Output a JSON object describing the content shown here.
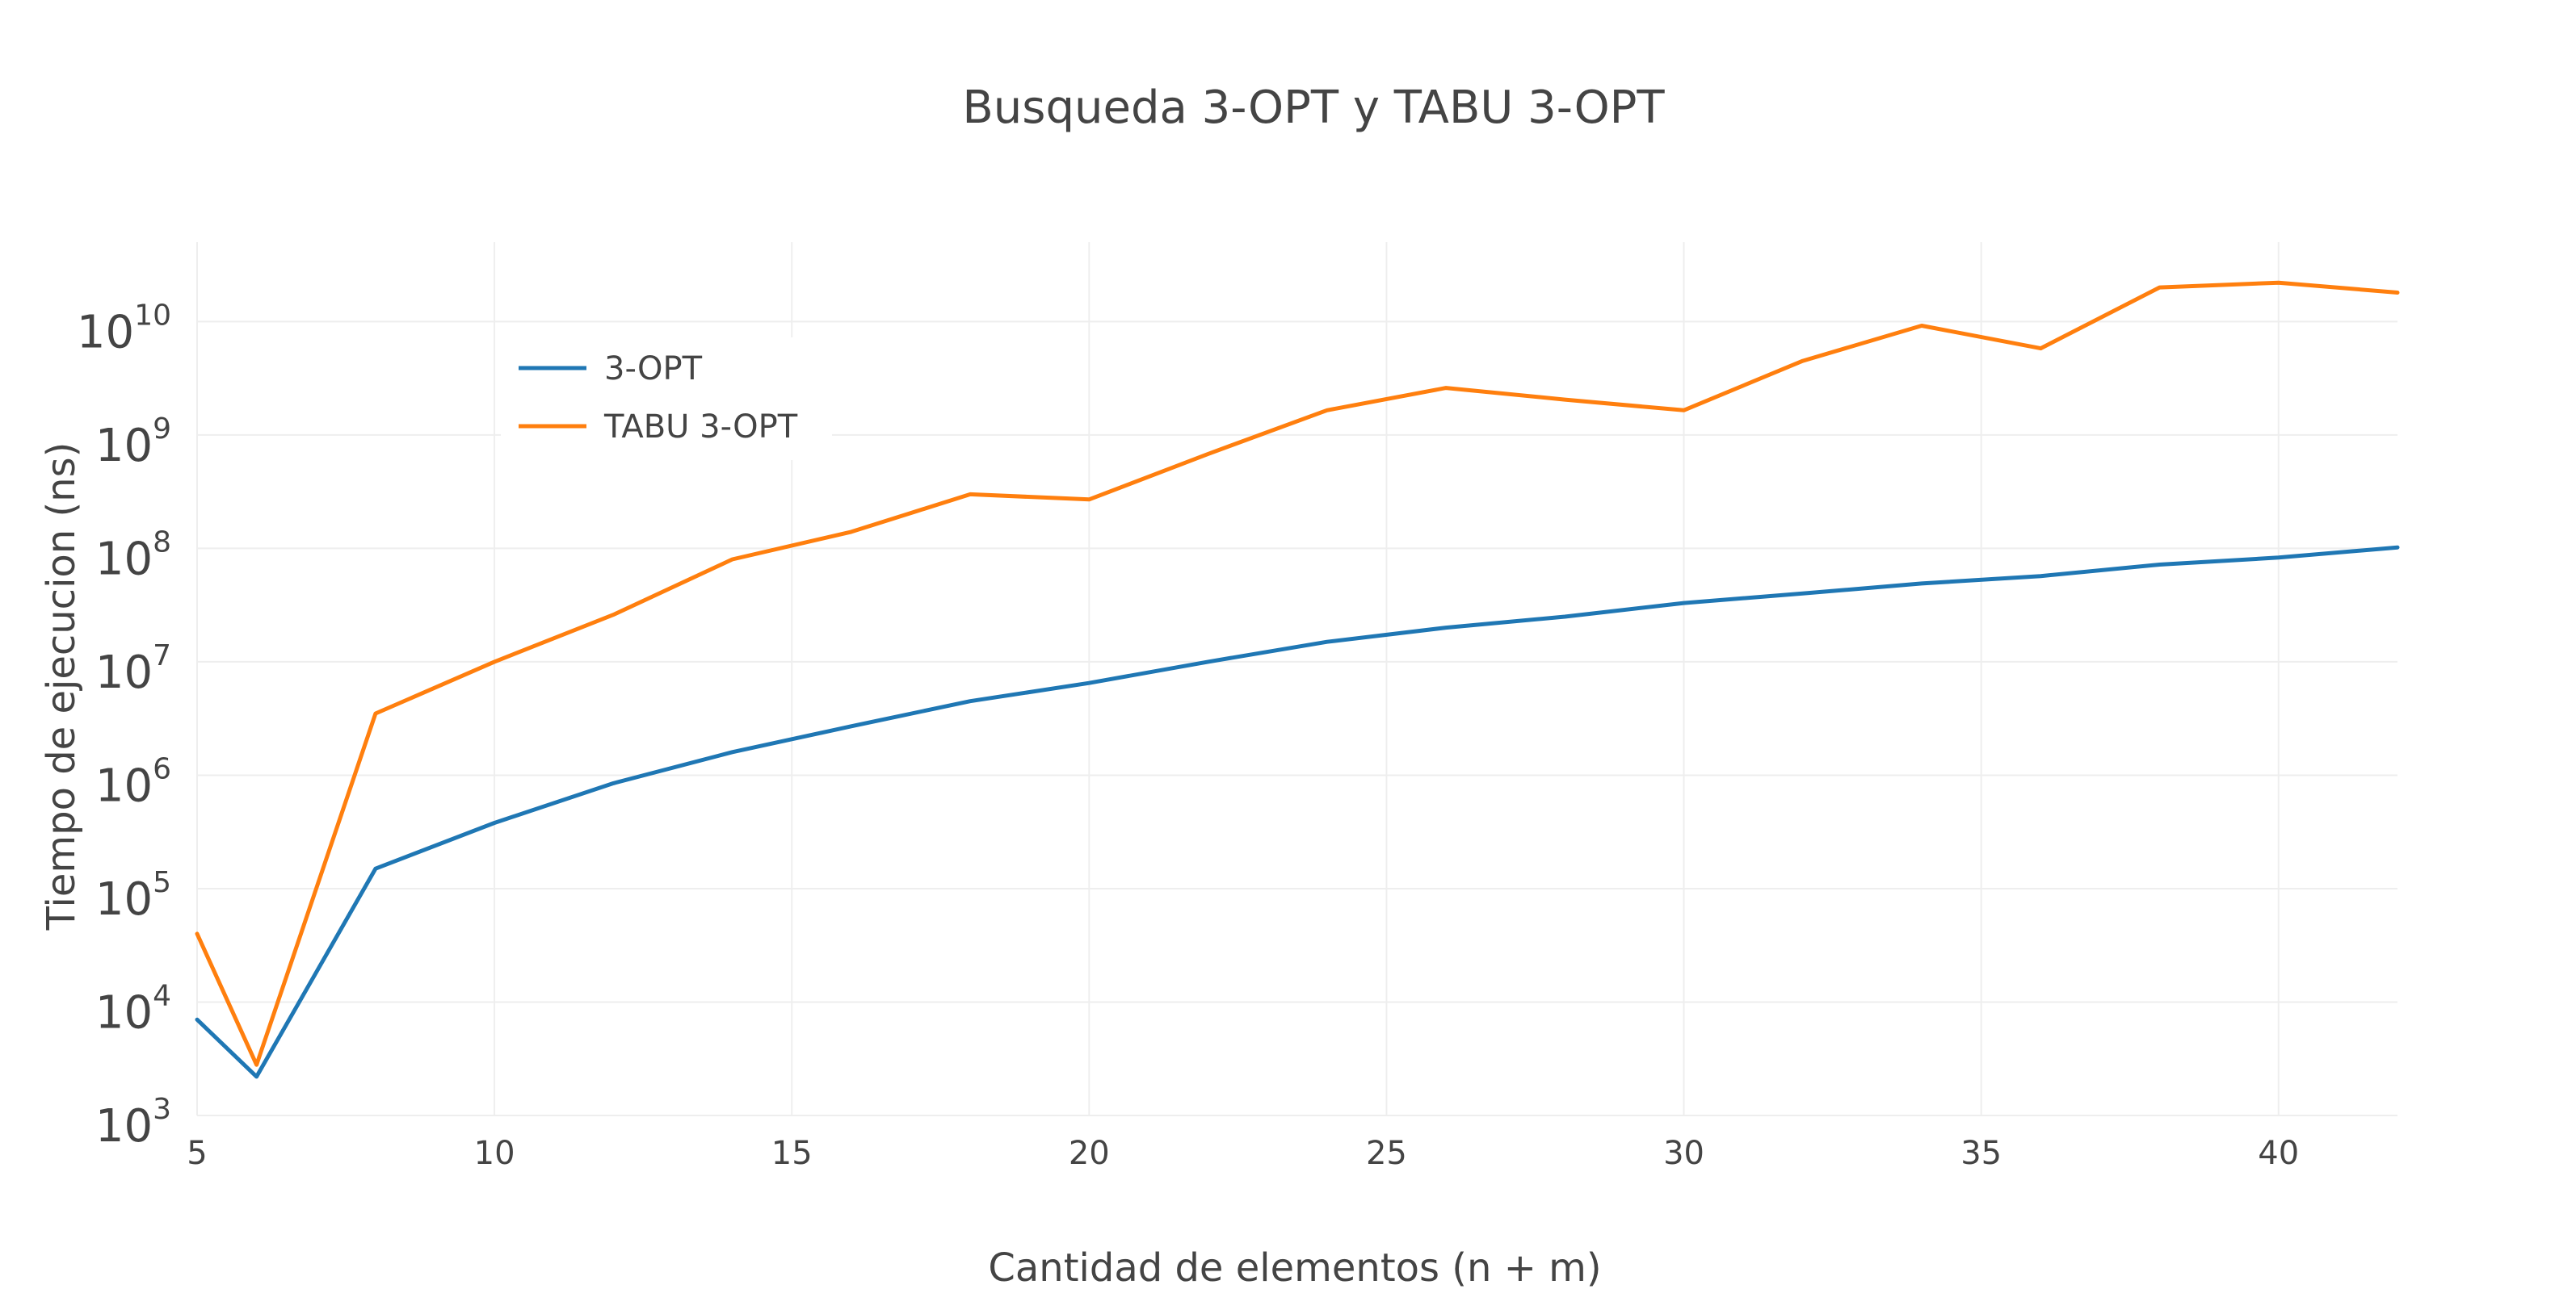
{
  "chart_data": {
    "type": "line",
    "title": "Busqueda 3-OPT y TABU 3-OPT",
    "xlabel": "Cantidad de elementos (n + m)",
    "ylabel": "Tiempo de ejecucion (ns)",
    "xlim": [
      5,
      42
    ],
    "ylim_log10": [
      3,
      10.7
    ],
    "yscale": "log",
    "grid": true,
    "legend_position": "top-left",
    "x_ticks": [
      5,
      10,
      15,
      20,
      25,
      30,
      35,
      40
    ],
    "x_tick_labels": [
      "5",
      "10",
      "15",
      "20",
      "25",
      "30",
      "35",
      "40"
    ],
    "y_ticks": [
      {
        "exp": 3,
        "base": "10",
        "sup": "3"
      },
      {
        "exp": 4,
        "base": "10",
        "sup": "4"
      },
      {
        "exp": 5,
        "base": "10",
        "sup": "5"
      },
      {
        "exp": 6,
        "base": "10",
        "sup": "6"
      },
      {
        "exp": 7,
        "base": "10",
        "sup": "7"
      },
      {
        "exp": 8,
        "base": "10",
        "sup": "8"
      },
      {
        "exp": 9,
        "base": "10",
        "sup": "9"
      },
      {
        "exp": 10,
        "base": "10",
        "sup": "10"
      }
    ],
    "x": [
      5,
      6,
      8,
      10,
      12,
      14,
      16,
      18,
      20,
      22,
      24,
      26,
      28,
      30,
      32,
      34,
      36,
      38,
      40,
      42
    ],
    "series": [
      {
        "name": "3-OPT",
        "color": "#1f77b4",
        "values": [
          7000,
          2200,
          150000,
          380000,
          850000,
          1600000,
          2700000,
          4500000,
          6500000,
          10000000,
          15000000,
          20000000,
          25000000,
          33000000,
          40000000,
          49000000,
          57000000,
          72000000,
          83000000,
          102000000
        ]
      },
      {
        "name": "TABU 3-OPT",
        "color": "#ff7f0e",
        "values": [
          40000,
          2800,
          3500000,
          10000000,
          26000000,
          80000000,
          140000000,
          300000000,
          270000000,
          680000000,
          1650000000,
          2600000000,
          2050000000,
          1650000000,
          4500000000,
          9200000000,
          5800000000,
          20000000000,
          22000000000,
          18000000000
        ]
      }
    ]
  }
}
